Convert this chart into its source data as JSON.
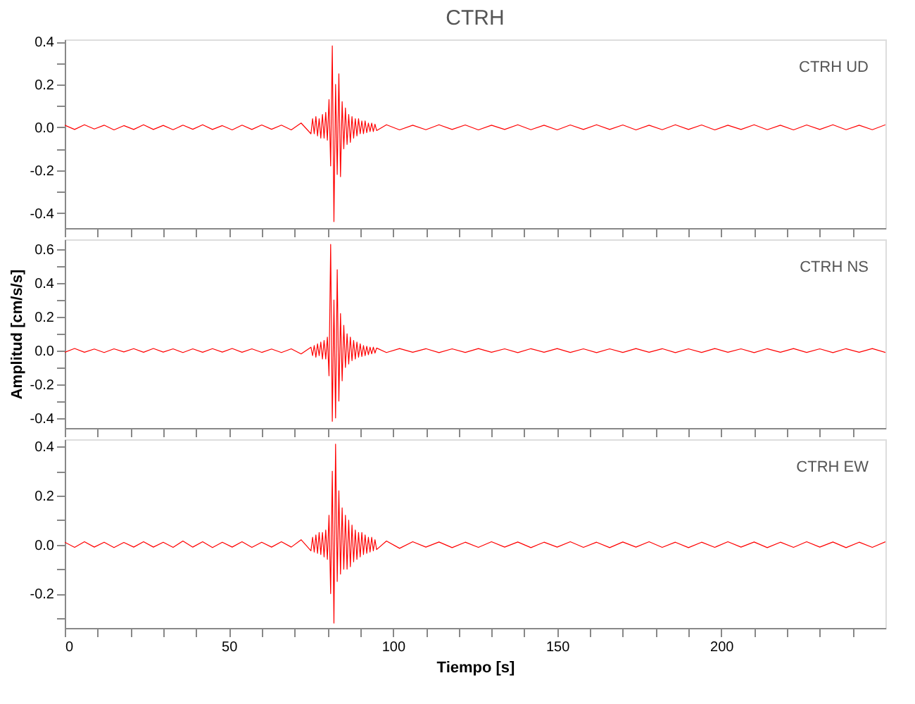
{
  "chart_data": [
    {
      "type": "line",
      "title": "CTRH",
      "annotations": [
        "CTRH   UD"
      ],
      "tick_labels": "y",
      "xlim": [
        0,
        250
      ],
      "xticks": [
        0,
        {
          "value": 10,
          "label": null
        },
        {
          "value": 20,
          "label": null
        },
        {
          "value": 30,
          "label": null
        },
        {
          "value": 40,
          "label": null
        },
        50,
        {
          "value": 60,
          "label": null
        },
        {
          "value": 70,
          "label": null
        },
        {
          "value": 80,
          "label": null
        },
        {
          "value": 90,
          "label": null
        },
        100,
        {
          "value": 110,
          "label": null
        },
        {
          "value": 120,
          "label": null
        },
        {
          "value": 130,
          "label": null
        },
        {
          "value": 140,
          "label": null
        },
        150,
        {
          "value": 160,
          "label": null
        },
        {
          "value": 170,
          "label": null
        },
        {
          "value": 180,
          "label": null
        },
        {
          "value": 190,
          "label": null
        },
        200,
        {
          "value": 210,
          "label": null
        },
        {
          "value": 220,
          "label": null
        },
        {
          "value": 230,
          "label": null
        },
        {
          "value": 240,
          "label": null
        }
      ],
      "ylim": [
        -0.47,
        0.41
      ],
      "yticks": [
        {
          "value": -0.4,
          "label": "-0.4"
        },
        {
          "value": -0.3,
          "label": null
        },
        {
          "value": -0.2,
          "label": "-0.2"
        },
        {
          "value": -0.1,
          "label": null
        },
        {
          "value": 0,
          "label": "0.0"
        },
        {
          "value": 0.1,
          "label": null
        },
        0.2,
        {
          "value": 0.3,
          "label": null
        },
        0.4
      ],
      "series": [
        {
          "color": "#ff0000",
          "x": [
            0,
            3,
            6,
            9,
            12,
            15,
            18,
            21,
            24,
            27,
            30,
            33,
            36,
            39,
            42,
            45,
            48,
            51,
            54,
            57,
            60,
            63,
            66,
            69,
            72,
            75,
            75.5,
            76,
            76.5,
            77,
            77.5,
            78,
            78.5,
            79,
            79.5,
            80,
            80.5,
            81,
            81.5,
            82,
            82.5,
            83,
            83.5,
            84,
            84.5,
            85,
            85.5,
            86,
            86.5,
            87,
            87.5,
            88,
            88.5,
            89,
            89.5,
            90,
            90.5,
            91,
            91.5,
            92,
            92.5,
            93,
            93.5,
            94,
            94.5,
            95,
            98,
            102,
            106,
            110,
            114,
            118,
            122,
            126,
            130,
            134,
            138,
            142,
            146,
            150,
            154,
            158,
            162,
            166,
            170,
            174,
            178,
            182,
            186,
            190,
            194,
            198,
            202,
            206,
            210,
            214,
            218,
            222,
            226,
            230,
            234,
            238,
            242,
            246,
            250
          ],
          "values": [
            0.01,
            -0.01,
            0.012,
            -0.008,
            0.01,
            -0.012,
            0.008,
            -0.01,
            0.012,
            -0.01,
            0.009,
            -0.011,
            0.01,
            -0.009,
            0.012,
            -0.01,
            0.008,
            -0.012,
            0.01,
            -0.01,
            0.011,
            -0.009,
            0.01,
            -0.012,
            0.02,
            -0.03,
            0.04,
            -0.03,
            0.05,
            -0.04,
            0.04,
            -0.05,
            0.06,
            -0.05,
            0.07,
            -0.06,
            0.13,
            -0.18,
            0.38,
            -0.44,
            0.2,
            -0.22,
            0.25,
            -0.23,
            0.12,
            -0.1,
            0.09,
            -0.08,
            0.06,
            -0.07,
            0.05,
            -0.05,
            0.04,
            -0.04,
            0.04,
            -0.03,
            0.03,
            -0.03,
            0.03,
            -0.025,
            0.02,
            -0.02,
            0.02,
            -0.02,
            0.015,
            -0.015,
            0.012,
            -0.012,
            0.01,
            -0.011,
            0.012,
            -0.01,
            0.011,
            -0.012,
            0.01,
            -0.01,
            0.012,
            -0.011,
            0.01,
            -0.012,
            0.011,
            -0.01,
            0.012,
            -0.01,
            0.011,
            -0.012,
            0.01,
            -0.011,
            0.012,
            -0.01,
            0.011,
            -0.012,
            0.01,
            -0.01,
            0.012,
            -0.011,
            0.01,
            -0.012,
            0.011,
            -0.01,
            0.012,
            -0.011,
            0.01,
            -0.011,
            0.012
          ]
        }
      ]
    },
    {
      "type": "line",
      "ylabel": "Amplitud [cm/s/s]",
      "annotations": [
        "CTRH   NS"
      ],
      "tick_labels": "y",
      "xlim": [
        0,
        250
      ],
      "xticks": [
        0,
        {
          "value": 10,
          "label": null
        },
        {
          "value": 20,
          "label": null
        },
        {
          "value": 30,
          "label": null
        },
        {
          "value": 40,
          "label": null
        },
        50,
        {
          "value": 60,
          "label": null
        },
        {
          "value": 70,
          "label": null
        },
        {
          "value": 80,
          "label": null
        },
        {
          "value": 90,
          "label": null
        },
        100,
        {
          "value": 110,
          "label": null
        },
        {
          "value": 120,
          "label": null
        },
        {
          "value": 130,
          "label": null
        },
        {
          "value": 140,
          "label": null
        },
        150,
        {
          "value": 160,
          "label": null
        },
        {
          "value": 170,
          "label": null
        },
        {
          "value": 180,
          "label": null
        },
        {
          "value": 190,
          "label": null
        },
        200,
        {
          "value": 210,
          "label": null
        },
        {
          "value": 220,
          "label": null
        },
        {
          "value": 230,
          "label": null
        },
        {
          "value": 240,
          "label": null
        }
      ],
      "ylim": [
        -0.46,
        0.66
      ],
      "yticks": [
        {
          "value": -0.4,
          "label": "-0.4"
        },
        {
          "value": -0.3,
          "label": null
        },
        {
          "value": -0.2,
          "label": "-0.2"
        },
        {
          "value": -0.1,
          "label": null
        },
        {
          "value": 0,
          "label": "0.0"
        },
        {
          "value": 0.1,
          "label": null
        },
        0.2,
        {
          "value": 0.3,
          "label": null
        },
        0.4,
        {
          "value": 0.5,
          "label": null
        },
        0.6
      ],
      "series": [
        {
          "color": "#ff0000",
          "x": [
            0,
            3,
            6,
            9,
            12,
            15,
            18,
            21,
            24,
            27,
            30,
            33,
            36,
            39,
            42,
            45,
            48,
            51,
            54,
            57,
            60,
            63,
            66,
            69,
            72,
            75,
            75.5,
            76,
            76.5,
            77,
            77.5,
            78,
            78.5,
            79,
            79.5,
            80,
            80.5,
            81,
            81.5,
            82,
            82.5,
            83,
            83.5,
            84,
            84.5,
            85,
            85.5,
            86,
            86.5,
            87,
            87.5,
            88,
            88.5,
            89,
            89.5,
            90,
            90.5,
            91,
            91.5,
            92,
            92.5,
            93,
            93.5,
            94,
            94.5,
            95,
            98,
            102,
            106,
            110,
            114,
            118,
            122,
            126,
            130,
            134,
            138,
            142,
            146,
            150,
            154,
            158,
            162,
            166,
            170,
            174,
            178,
            182,
            186,
            190,
            194,
            198,
            202,
            206,
            210,
            214,
            218,
            222,
            226,
            230,
            234,
            238,
            242,
            246,
            250
          ],
          "values": [
            -0.01,
            0.012,
            -0.01,
            0.009,
            -0.012,
            0.01,
            -0.008,
            0.011,
            -0.01,
            0.012,
            -0.009,
            0.01,
            -0.012,
            0.01,
            -0.01,
            0.011,
            -0.009,
            0.012,
            -0.01,
            0.01,
            -0.011,
            0.009,
            -0.012,
            0.01,
            -0.02,
            0.02,
            -0.03,
            0.03,
            -0.04,
            0.04,
            -0.03,
            0.05,
            -0.05,
            0.06,
            -0.05,
            0.08,
            -0.15,
            0.63,
            -0.42,
            0.3,
            -0.4,
            0.48,
            -0.3,
            0.22,
            -0.18,
            0.15,
            -0.1,
            0.1,
            -0.08,
            0.08,
            -0.06,
            0.06,
            -0.05,
            0.05,
            -0.04,
            0.04,
            -0.035,
            0.03,
            -0.03,
            0.025,
            -0.025,
            0.02,
            -0.02,
            0.02,
            -0.015,
            0.015,
            -0.012,
            0.012,
            -0.01,
            0.011,
            -0.012,
            0.01,
            -0.011,
            0.012,
            -0.01,
            0.01,
            -0.012,
            0.011,
            -0.01,
            0.012,
            -0.011,
            0.01,
            -0.012,
            0.01,
            -0.011,
            0.012,
            -0.01,
            0.011,
            -0.012,
            0.01,
            -0.011,
            0.012,
            -0.01,
            0.01,
            -0.012,
            0.011,
            -0.01,
            0.012,
            -0.011,
            0.01,
            -0.012,
            0.011,
            -0.01,
            0.012,
            -0.011
          ]
        }
      ]
    },
    {
      "type": "line",
      "xlabel": "Tiempo [s]",
      "annotations": [
        "CTRH   EW"
      ],
      "xlim": [
        0,
        250
      ],
      "xticks": [
        0,
        {
          "value": 10,
          "label": null
        },
        {
          "value": 20,
          "label": null
        },
        {
          "value": 30,
          "label": null
        },
        {
          "value": 40,
          "label": null
        },
        50,
        {
          "value": 60,
          "label": null
        },
        {
          "value": 70,
          "label": null
        },
        {
          "value": 80,
          "label": null
        },
        {
          "value": 90,
          "label": null
        },
        100,
        {
          "value": 110,
          "label": null
        },
        {
          "value": 120,
          "label": null
        },
        {
          "value": 130,
          "label": null
        },
        {
          "value": 140,
          "label": null
        },
        150,
        {
          "value": 160,
          "label": null
        },
        {
          "value": 170,
          "label": null
        },
        {
          "value": 180,
          "label": null
        },
        {
          "value": 190,
          "label": null
        },
        200,
        {
          "value": 210,
          "label": null
        },
        {
          "value": 220,
          "label": null
        },
        {
          "value": 230,
          "label": null
        },
        {
          "value": 240,
          "label": null
        }
      ],
      "ylim": [
        -0.34,
        0.43
      ],
      "yticks": [
        {
          "value": -0.3,
          "label": null
        },
        {
          "value": -0.2,
          "label": "-0.2"
        },
        {
          "value": -0.1,
          "label": null
        },
        {
          "value": 0,
          "label": "0.0"
        },
        {
          "value": 0.1,
          "label": null
        },
        0.2,
        {
          "value": 0.3,
          "label": null
        },
        0.4
      ],
      "series": [
        {
          "color": "#ff0000",
          "x": [
            0,
            3,
            6,
            9,
            12,
            15,
            18,
            21,
            24,
            27,
            30,
            33,
            36,
            39,
            42,
            45,
            48,
            51,
            54,
            57,
            60,
            63,
            66,
            69,
            72,
            75,
            75.5,
            76,
            76.5,
            77,
            77.5,
            78,
            78.5,
            79,
            79.5,
            80,
            80.5,
            81,
            81.5,
            82,
            82.5,
            83,
            83.5,
            84,
            84.5,
            85,
            85.5,
            86,
            86.5,
            87,
            87.5,
            88,
            88.5,
            89,
            89.5,
            90,
            90.5,
            91,
            91.5,
            92,
            92.5,
            93,
            93.5,
            94,
            94.5,
            95,
            98,
            102,
            106,
            110,
            114,
            118,
            122,
            126,
            130,
            134,
            138,
            142,
            146,
            150,
            154,
            158,
            162,
            166,
            170,
            174,
            178,
            182,
            186,
            190,
            194,
            198,
            202,
            206,
            210,
            214,
            218,
            222,
            226,
            230,
            234,
            238,
            242,
            246,
            250
          ],
          "values": [
            0.01,
            -0.011,
            0.012,
            -0.01,
            0.01,
            -0.012,
            0.009,
            -0.01,
            0.012,
            -0.01,
            0.01,
            -0.011,
            0.015,
            -0.01,
            0.012,
            -0.012,
            0.01,
            -0.01,
            0.012,
            -0.011,
            0.01,
            -0.01,
            0.012,
            -0.01,
            0.02,
            -0.025,
            0.03,
            -0.03,
            0.04,
            -0.035,
            0.05,
            -0.04,
            0.05,
            -0.05,
            0.06,
            -0.06,
            0.12,
            -0.2,
            0.3,
            -0.32,
            0.41,
            -0.15,
            0.22,
            -0.12,
            0.15,
            -0.1,
            0.12,
            -0.1,
            0.1,
            -0.09,
            0.08,
            -0.07,
            0.06,
            -0.06,
            0.05,
            -0.05,
            0.05,
            -0.04,
            0.04,
            -0.035,
            0.03,
            -0.03,
            0.03,
            -0.025,
            0.02,
            -0.02,
            0.015,
            -0.015,
            0.012,
            -0.01,
            0.011,
            -0.012,
            0.01,
            -0.011,
            0.012,
            -0.01,
            0.011,
            -0.012,
            0.01,
            -0.01,
            0.012,
            -0.011,
            0.01,
            -0.012,
            0.011,
            -0.01,
            0.012,
            -0.011,
            0.01,
            -0.012,
            0.01,
            -0.011,
            0.012,
            -0.01,
            0.011,
            -0.012,
            0.01,
            -0.011,
            0.012,
            -0.01,
            0.011,
            -0.012,
            0.01,
            -0.011,
            0.012
          ]
        }
      ]
    }
  ]
}
